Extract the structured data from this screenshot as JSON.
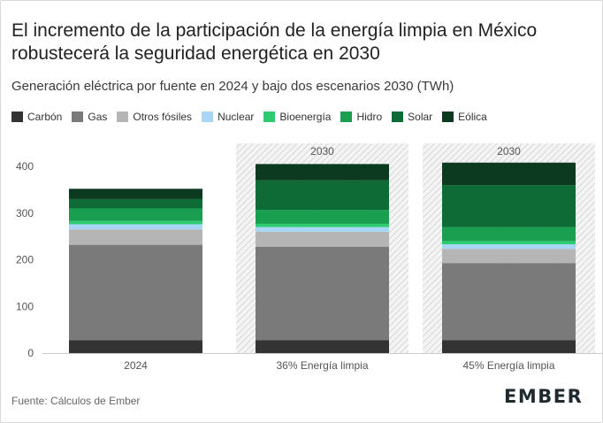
{
  "title": "El incremento de la participación de la energía limpia en México robustecerá la seguridad energética en 2030",
  "subtitle": "Generación eléctrica por fuente en 2024 y bajo dos escenarios 2030 (TWh)",
  "source": "Fuente: Cálculos de Ember",
  "logo": "EMBER",
  "chart_data": {
    "type": "bar",
    "stacked": true,
    "title": "El incremento de la participación de la energía limpia en México robustecerá la seguridad energética en 2030",
    "subtitle": "Generación eléctrica por fuente en 2024 y bajo dos escenarios 2030 (TWh)",
    "categories": [
      "2024",
      "36% Energía limpia",
      "45% Energía limpia"
    ],
    "scenario_labels": [
      "",
      "2030",
      "2030"
    ],
    "ylim": [
      0,
      400
    ],
    "yticks": [
      0,
      100,
      200,
      300,
      400
    ],
    "grid": false,
    "legend_position": "top-left",
    "series": [
      {
        "name": "Carbón",
        "color": "#333333",
        "values": [
          28,
          28,
          28
        ]
      },
      {
        "name": "Gas",
        "color": "#7a7a7a",
        "values": [
          204,
          200,
          165
        ]
      },
      {
        "name": "Otros fósiles",
        "color": "#b5b5b5",
        "values": [
          33,
          32,
          30
        ]
      },
      {
        "name": "Nuclear",
        "color": "#a9d6f5",
        "values": [
          11,
          10,
          10
        ]
      },
      {
        "name": "Bioenergía",
        "color": "#2ecc71",
        "values": [
          7,
          7,
          7
        ]
      },
      {
        "name": "Hidro",
        "color": "#1a9e4f",
        "values": [
          27,
          30,
          30
        ]
      },
      {
        "name": "Solar",
        "color": "#0e6b35",
        "values": [
          20,
          63,
          90
        ]
      },
      {
        "name": "Eólica",
        "color": "#0b3a20",
        "values": [
          22,
          35,
          48
        ]
      }
    ]
  }
}
